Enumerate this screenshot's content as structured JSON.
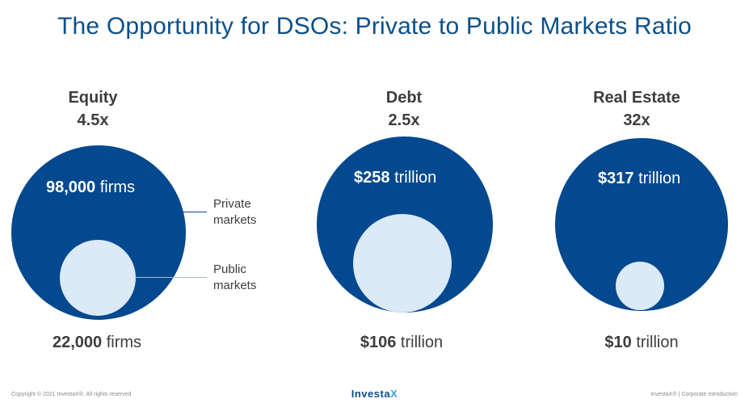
{
  "title": "The Opportunity for DSOs: Private to Public Markets Ratio",
  "colors": {
    "private": "#04498f",
    "public": "#dce9f6",
    "title": "#0b4f8a",
    "text": "#3d3d3d"
  },
  "legend": {
    "private_line1": "Private",
    "private_line2": "markets",
    "public_line1": "Public",
    "public_line2": "markets"
  },
  "columns": [
    {
      "name": "Equity",
      "ratio": "4.5x",
      "private_value": "98,000",
      "private_unit": "firms",
      "public_value": "22,000",
      "public_unit": "firms"
    },
    {
      "name": "Debt",
      "ratio": "2.5x",
      "private_value": "$258",
      "private_unit": "trillion",
      "public_value": "$106",
      "public_unit": "trillion"
    },
    {
      "name": "Real Estate",
      "ratio": "32x",
      "private_value": "$317",
      "private_unit": "trillion",
      "public_value": "$10",
      "public_unit": "trillion"
    }
  ],
  "footer": {
    "left": "Copyright © 2021 InvestaX®. All rights reserved",
    "logo_main": "Investa",
    "logo_x": "X",
    "right": "InvestaX® | Corporate Introduction"
  }
}
